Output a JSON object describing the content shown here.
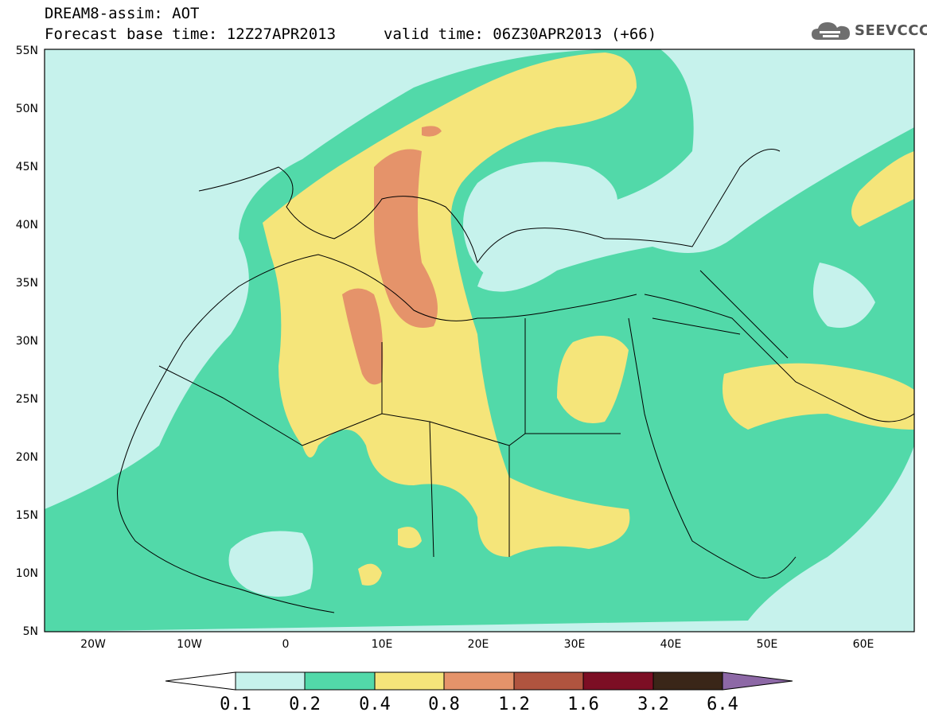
{
  "header": {
    "model_line": "DREAM8-assim: AOT",
    "base_time_line": "Forecast base time: 12Z27APR2013",
    "valid_time_line": "valid time: 06Z30APR2013 (+66)"
  },
  "logo": {
    "text": "SEEVCCC",
    "icon": "cloud-icon"
  },
  "map": {
    "lon_range": [
      -25,
      65
    ],
    "lat_range": [
      5,
      55
    ],
    "lat_ticks": [
      "5N",
      "10N",
      "15N",
      "20N",
      "25N",
      "30N",
      "35N",
      "40N",
      "45N",
      "50N",
      "55N"
    ],
    "lon_ticks": [
      "20W",
      "10W",
      "0",
      "10E",
      "20E",
      "30E",
      "40E",
      "50E",
      "60E"
    ],
    "background_color": "#ffffff"
  },
  "legend": {
    "levels": [
      "0.1",
      "0.2",
      "0.4",
      "0.8",
      "1.2",
      "1.6",
      "3.2",
      "6.4"
    ],
    "colors": [
      "#ffffff",
      "#c6f2ec",
      "#52d9a9",
      "#f5e57a",
      "#e5936a",
      "#b0543f",
      "#7c0e24",
      "#3a2618",
      "#8d68a6"
    ]
  }
}
